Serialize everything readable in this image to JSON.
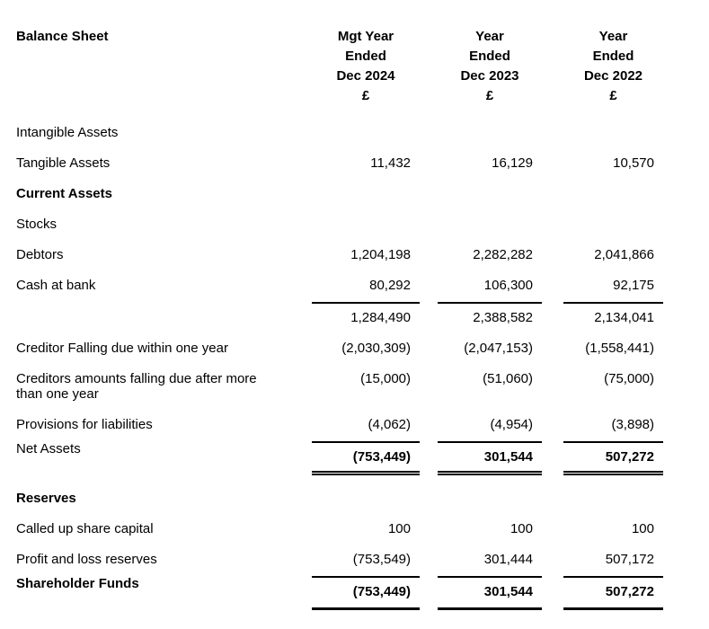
{
  "title": "Balance Sheet",
  "currency_symbol": "£",
  "text_color": "#000000",
  "background_color": "#ffffff",
  "columns": [
    {
      "name": "mgt-year-ended-dec-2024",
      "lines": [
        "Mgt Year",
        "Ended",
        "Dec 2024",
        "£"
      ]
    },
    {
      "name": "year-ended-dec-2023",
      "lines": [
        "Year",
        "Ended",
        "Dec 2023",
        "£"
      ]
    },
    {
      "name": "year-ended-dec-2022",
      "lines": [
        "Year",
        "Ended",
        "Dec 2022",
        "£"
      ]
    }
  ],
  "rows": [
    {
      "label": "Intangible Assets",
      "values": [
        "",
        "",
        ""
      ]
    },
    {
      "label": "Tangible Assets",
      "values": [
        "11,432",
        "16,129",
        "10,570"
      ]
    },
    {
      "label": "Current Assets",
      "values": [
        "",
        "",
        ""
      ],
      "bold_label": true
    },
    {
      "label": "Stocks",
      "values": [
        "",
        "",
        ""
      ]
    },
    {
      "label": "Debtors",
      "values": [
        "1,204,198",
        "2,282,282",
        "2,041,866"
      ]
    },
    {
      "label": "Cash at bank",
      "values": [
        "80,292",
        "106,300",
        "92,175"
      ]
    },
    {
      "label": "",
      "values": [
        "1,284,490",
        "2,388,582",
        "2,134,041"
      ],
      "rule_top": true
    },
    {
      "label": "Creditor Falling due within one year",
      "values": [
        "(2,030,309)",
        "(2,047,153)",
        "(1,558,441)"
      ]
    },
    {
      "label": "Creditors amounts falling due after more than one year",
      "values": [
        "(15,000)",
        "(51,060)",
        "(75,000)"
      ]
    },
    {
      "label": "Provisions for liabilities",
      "values": [
        "(4,062)",
        "(4,954)",
        "(3,898)"
      ]
    },
    {
      "label": "Net Assets",
      "values": [
        "(753,449)",
        "301,544",
        "507,272"
      ],
      "rule_top": true,
      "rule_bottom": "double",
      "bold_values": true
    },
    {
      "label": "Reserves",
      "values": [
        "",
        "",
        ""
      ],
      "bold_label": true
    },
    {
      "label": "Called up share capital",
      "values": [
        "100",
        "100",
        "100"
      ]
    },
    {
      "label": "Profit and loss reserves",
      "values": [
        "(753,549)",
        "301,444",
        "507,172"
      ]
    },
    {
      "label": "Shareholder Funds",
      "values": [
        "(753,449)",
        "301,544",
        "507,272"
      ],
      "bold_label": true,
      "bold_values": true,
      "rule_top": true,
      "rule_bottom": "thick"
    }
  ]
}
